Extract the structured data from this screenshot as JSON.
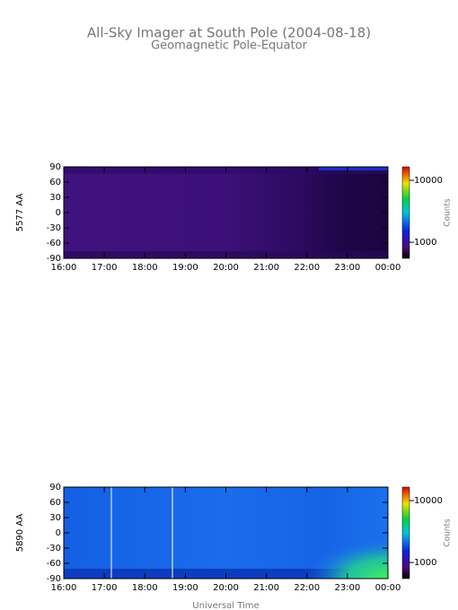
{
  "title": "All-Sky Imager at South Pole (2004-08-18)",
  "subtitle": "Geomagnetic Pole-Equator",
  "chart_data": [
    {
      "type": "heatmap",
      "y_label": "5577 AA",
      "xlim": [
        16,
        24
      ],
      "xticks": [
        {
          "value": 16,
          "label": "16:00"
        },
        {
          "value": 17,
          "label": "17:00"
        },
        {
          "value": 18,
          "label": "18:00"
        },
        {
          "value": 19,
          "label": "19:00"
        },
        {
          "value": 20,
          "label": "20:00"
        },
        {
          "value": 21,
          "label": "21:00"
        },
        {
          "value": 22,
          "label": "22:00"
        },
        {
          "value": 23,
          "label": "23:00"
        },
        {
          "value": 24,
          "label": "00:00"
        }
      ],
      "ylim": [
        -90,
        90
      ],
      "yticks": [
        -90,
        -60,
        -30,
        0,
        30,
        60,
        90
      ],
      "colorbar_label": "Counts",
      "colorbar_log": true,
      "colorbar_lim": [
        550,
        16500
      ],
      "colorbar_ticks": [
        1000,
        10000
      ]
    },
    {
      "type": "heatmap",
      "y_label": "5890 AA",
      "x_label": "Universal Time",
      "xlim": [
        16,
        24
      ],
      "xticks": [
        {
          "value": 16,
          "label": "16:00"
        },
        {
          "value": 17,
          "label": "17:00"
        },
        {
          "value": 18,
          "label": "18:00"
        },
        {
          "value": 19,
          "label": "19:00"
        },
        {
          "value": 20,
          "label": "20:00"
        },
        {
          "value": 21,
          "label": "21:00"
        },
        {
          "value": 22,
          "label": "22:00"
        },
        {
          "value": 23,
          "label": "23:00"
        },
        {
          "value": 24,
          "label": "00:00"
        }
      ],
      "ylim": [
        -90,
        90
      ],
      "yticks": [
        -90,
        -60,
        -30,
        0,
        30,
        60,
        90
      ],
      "colorbar_label": "Counts",
      "colorbar_log": true,
      "colorbar_lim": [
        550,
        16500
      ],
      "colorbar_ticks": [
        1000,
        10000
      ]
    }
  ]
}
